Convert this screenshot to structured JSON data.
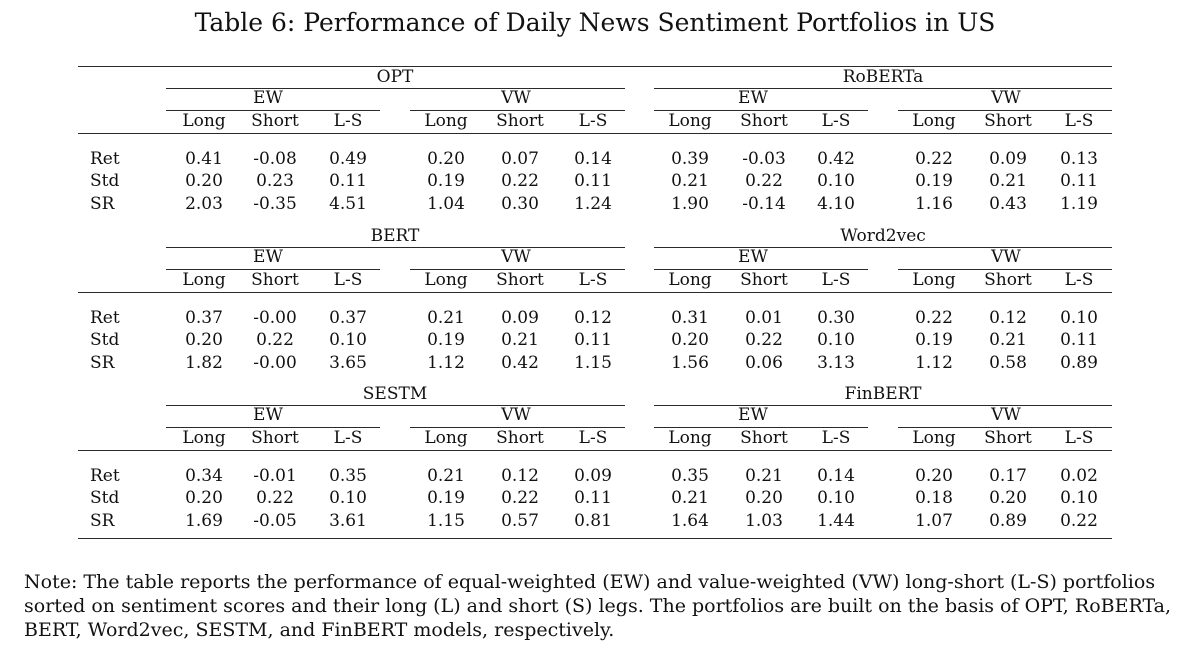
{
  "title": "Table 6: Performance of Daily News Sentiment Portfolios in US",
  "headers": {
    "ew": "EW",
    "vw": "VW",
    "long": "Long",
    "short": "Short",
    "ls": "L-S"
  },
  "row_labels": [
    "Ret",
    "Std",
    "SR"
  ],
  "panels": [
    {
      "left": {
        "model": "OPT",
        "rows": [
          [
            "0.41",
            "-0.08",
            "0.49",
            "0.20",
            "0.07",
            "0.14"
          ],
          [
            "0.20",
            "0.23",
            "0.11",
            "0.19",
            "0.22",
            "0.11"
          ],
          [
            "2.03",
            "-0.35",
            "4.51",
            "1.04",
            "0.30",
            "1.24"
          ]
        ]
      },
      "right": {
        "model": "RoBERTa",
        "rows": [
          [
            "0.39",
            "-0.03",
            "0.42",
            "0.22",
            "0.09",
            "0.13"
          ],
          [
            "0.21",
            "0.22",
            "0.10",
            "0.19",
            "0.21",
            "0.11"
          ],
          [
            "1.90",
            "-0.14",
            "4.10",
            "1.16",
            "0.43",
            "1.19"
          ]
        ]
      }
    },
    {
      "left": {
        "model": "BERT",
        "rows": [
          [
            "0.37",
            "-0.00",
            "0.37",
            "0.21",
            "0.09",
            "0.12"
          ],
          [
            "0.20",
            "0.22",
            "0.10",
            "0.19",
            "0.21",
            "0.11"
          ],
          [
            "1.82",
            "-0.00",
            "3.65",
            "1.12",
            "0.42",
            "1.15"
          ]
        ]
      },
      "right": {
        "model": "Word2vec",
        "rows": [
          [
            "0.31",
            "0.01",
            "0.30",
            "0.22",
            "0.12",
            "0.10"
          ],
          [
            "0.20",
            "0.22",
            "0.10",
            "0.19",
            "0.21",
            "0.11"
          ],
          [
            "1.56",
            "0.06",
            "3.13",
            "1.12",
            "0.58",
            "0.89"
          ]
        ]
      }
    },
    {
      "left": {
        "model": "SESTM",
        "rows": [
          [
            "0.34",
            "-0.01",
            "0.35",
            "0.21",
            "0.12",
            "0.09"
          ],
          [
            "0.20",
            "0.22",
            "0.10",
            "0.19",
            "0.22",
            "0.11"
          ],
          [
            "1.69",
            "-0.05",
            "3.61",
            "1.15",
            "0.57",
            "0.81"
          ]
        ]
      },
      "right": {
        "model": "FinBERT",
        "rows": [
          [
            "0.35",
            "0.21",
            "0.14",
            "0.20",
            "0.17",
            "0.02"
          ],
          [
            "0.21",
            "0.20",
            "0.10",
            "0.18",
            "0.20",
            "0.10"
          ],
          [
            "1.64",
            "1.03",
            "1.44",
            "1.07",
            "0.89",
            "0.22"
          ]
        ]
      }
    }
  ],
  "note": "Note: The table reports the performance of equal-weighted (EW) and value-weighted (VW) long-short (L-S) portfolios sorted on sentiment scores and their long (L) and short (S) legs. The portfolios are built on the basis of OPT, RoBERTa, BERT, Word2vec, SESTM, and FinBERT models, respectively."
}
